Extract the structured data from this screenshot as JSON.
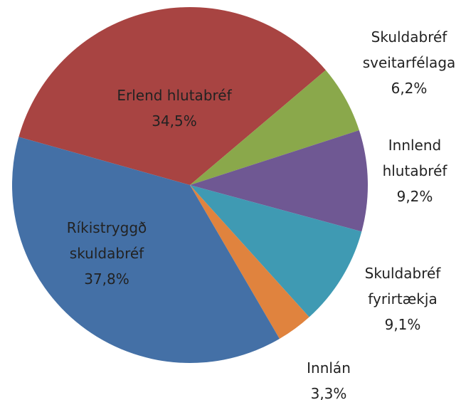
{
  "chart_data": {
    "type": "pie",
    "categories": [
      "Erlend hlutabréf",
      "Skuldabréf sveitarfélaga",
      "Innlend hlutabréf",
      "Skuldabréf fyrirtækja",
      "Innlán",
      "Ríkistryggð skuldabréf"
    ],
    "values": [
      34.5,
      6.2,
      9.2,
      9.1,
      3.3,
      37.8
    ],
    "value_labels": [
      "34,5%",
      "6,2%",
      "9,2%",
      "9,1%",
      "3,3%",
      "37,8%"
    ],
    "colors": [
      "#a84442",
      "#8aa84b",
      "#6f5893",
      "#3f9ab3",
      "#e0833e",
      "#4470a6"
    ]
  }
}
